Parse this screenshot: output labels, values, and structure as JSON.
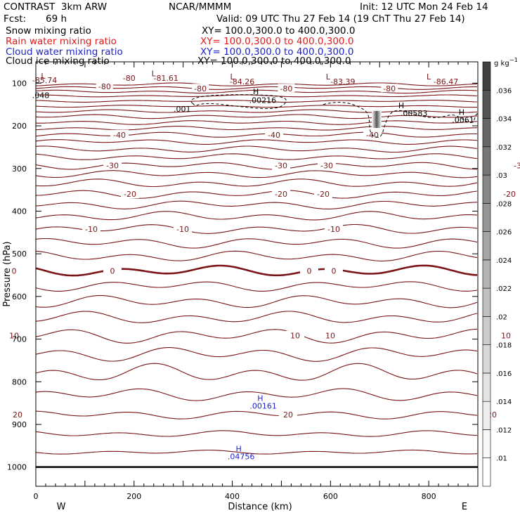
{
  "header": {
    "model": "CONTRAST  3km ARW",
    "org": "NCAR/MMMM",
    "init": "Init: 12 UTC Mon 24 Feb 14",
    "fcst_label": "Fcst:",
    "fcst_value": "69 h",
    "valid": "Valid: 09 UTC Thu 27 Feb 14 (19 ChT Thu 27 Feb 14)",
    "fields": [
      {
        "name": "Snow mixing ratio",
        "xy": "XY= 100.0,300.0 to 400.0,300.0",
        "color": "#000000"
      },
      {
        "name": "Rain water mixing ratio",
        "xy": "XY= 100.0,300.0 to 400.0,300.0",
        "color": "#e11b1b"
      },
      {
        "name": "Cloud water mixing ratio",
        "xy": "XY= 100.0,300.0 to 400.0,300.0",
        "color": "#1d23c8"
      },
      {
        "name": "Cloud ice mixing ratio",
        "xy": "XY= 100.0,300.0 to 400.0,300.0",
        "color": "#000000"
      }
    ]
  },
  "chart_data": {
    "type": "contour",
    "xlabel": "Distance (km)",
    "ylabel": "Pressure (hPa)",
    "xlim": [
      0,
      900
    ],
    "ylim": [
      1045,
      50
    ],
    "xticks": [
      0,
      200,
      400,
      600,
      800
    ],
    "yticks": [
      100,
      200,
      300,
      400,
      500,
      600,
      700,
      800,
      900,
      1000
    ],
    "x_end_labels": {
      "left": "W",
      "right": "E"
    },
    "colorbar": {
      "unit_label": "g kg",
      "unit_exponent": "−1",
      "ticks": [
        ".01",
        ".012",
        ".014",
        ".016",
        ".018",
        ".02",
        ".022",
        ".024",
        ".026",
        ".028",
        ".03",
        ".032",
        ".034",
        ".036"
      ],
      "colors": [
        "#ffffff",
        "#f7f7f7",
        "#eeeeee",
        "#e3e3e3",
        "#d8d8d8",
        "#cccccc",
        "#c0c0c0",
        "#b3b3b3",
        "#a5a5a5",
        "#969696",
        "#878787",
        "#777777",
        "#666666",
        "#545454",
        "#414141"
      ]
    },
    "contour_color": "#7a1416",
    "temperature_lines": [
      {
        "p": 103,
        "a": 1.5
      },
      {
        "p": 111,
        "a": 1.5
      },
      {
        "p": 120,
        "a": 1.5
      },
      {
        "p": 130,
        "a": 1
      },
      {
        "p": 142,
        "a": 1
      },
      {
        "p": 154,
        "a": 1
      },
      {
        "p": 166,
        "a": 1.5
      },
      {
        "p": 178,
        "a": 2
      },
      {
        "p": 192,
        "a": 2
      },
      {
        "p": 206,
        "a": 2
      },
      {
        "p": 221,
        "a": 2.5,
        "label": "-40",
        "lx": [
          170,
          390,
          530
        ]
      },
      {
        "p": 237,
        "a": 2.5
      },
      {
        "p": 255,
        "a": 3
      },
      {
        "p": 273,
        "a": 3
      },
      {
        "p": 293,
        "a": 3.5,
        "label": "-30",
        "lx": [
          160,
          400,
          465,
          740
        ]
      },
      {
        "p": 313,
        "a": 3.5
      },
      {
        "p": 335,
        "a": 4
      },
      {
        "p": 360,
        "a": 4,
        "label": "-20",
        "lx": [
          185,
          400,
          460,
          725
        ]
      },
      {
        "p": 385,
        "a": 4
      },
      {
        "p": 412,
        "a": 4.5
      },
      {
        "p": 442,
        "a": 4.5,
        "label": "-10",
        "lx": [
          130,
          260,
          475,
          755
        ]
      },
      {
        "p": 474,
        "a": 5
      },
      {
        "p": 506,
        "a": 5
      },
      {
        "p": 540,
        "a": 5,
        "label": "0",
        "lx": [
          20,
          160,
          440,
          475,
          695
        ],
        "thick": true
      },
      {
        "p": 575,
        "a": 5
      },
      {
        "p": 612,
        "a": 6
      },
      {
        "p": 650,
        "a": 6
      },
      {
        "p": 692,
        "a": 7,
        "label": "10",
        "lx": [
          20,
          420,
          470,
          720
        ]
      },
      {
        "p": 735,
        "a": 7
      },
      {
        "p": 780,
        "a": 9
      },
      {
        "p": 830,
        "a": 6
      },
      {
        "p": 877,
        "a": 4,
        "label": "20",
        "lx": [
          25,
          410,
          700,
          755
        ]
      },
      {
        "p": 922,
        "a": 3
      },
      {
        "p": 965,
        "a": 2
      }
    ],
    "min_labels": [
      {
        "x": 15,
        "p": 83,
        "text": "L"
      },
      {
        "x": 18,
        "p": 93,
        "text": "-85.74"
      },
      {
        "x": 240,
        "p": 77,
        "text": "L"
      },
      {
        "x": 265,
        "p": 88,
        "text": "-81.61"
      },
      {
        "x": 400,
        "p": 85,
        "text": "L"
      },
      {
        "x": 420,
        "p": 96,
        "text": "-84.26"
      },
      {
        "x": 595,
        "p": 85,
        "text": "L"
      },
      {
        "x": 625,
        "p": 96,
        "text": "-83.39"
      },
      {
        "x": 800,
        "p": 85,
        "text": "L"
      },
      {
        "x": 835,
        "p": 96,
        "text": "-86.47"
      }
    ],
    "upper_labels": [
      {
        "x": 190,
        "p": 88,
        "text": "-80"
      },
      {
        "x": 140,
        "p": 108,
        "text": "-80"
      },
      {
        "x": 335,
        "p": 113,
        "text": "-80"
      },
      {
        "x": 510,
        "p": 113,
        "text": "-80"
      },
      {
        "x": 720,
        "p": 113,
        "text": "-80"
      }
    ],
    "snow_annotations": [
      {
        "x": 10,
        "p": 128,
        "text": ".048"
      },
      {
        "x": 298,
        "p": 160,
        "text": ".001"
      },
      {
        "x": 448,
        "p": 119,
        "text": "H"
      },
      {
        "x": 462,
        "p": 140,
        "text": ".00216"
      },
      {
        "x": 744,
        "p": 152,
        "text": "H"
      },
      {
        "x": 770,
        "p": 170,
        "text": ".00583"
      },
      {
        "x": 867,
        "p": 168,
        "text": "H"
      },
      {
        "x": 870,
        "p": 186,
        "text": ".0061"
      }
    ],
    "cloud_water_annotations": [
      {
        "x": 457,
        "p": 838,
        "text": "H"
      },
      {
        "x": 463,
        "p": 856,
        "text": ".00161"
      },
      {
        "x": 413,
        "p": 957,
        "text": "H"
      },
      {
        "x": 418,
        "p": 975,
        "text": ".04756"
      }
    ]
  }
}
